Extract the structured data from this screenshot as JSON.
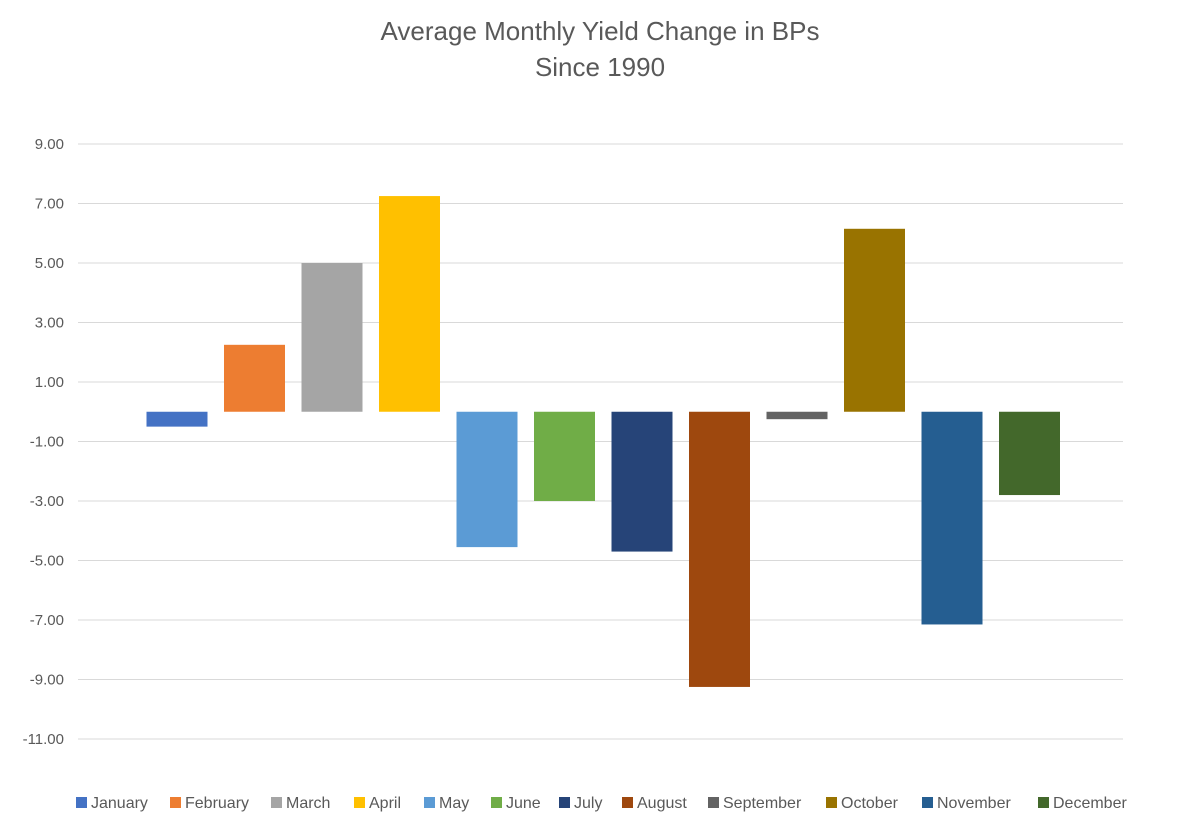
{
  "chart_data": {
    "type": "bar",
    "title": "Average Monthly Yield Change in BPs",
    "subtitle": "Since 1990",
    "xlabel": "",
    "ylabel": "",
    "ylim": [
      -11,
      9
    ],
    "yticks": [
      9,
      7,
      5,
      3,
      1,
      -1,
      -3,
      -5,
      -7,
      -9,
      -11
    ],
    "ytick_labels": [
      "9.00",
      "7.00",
      "5.00",
      "3.00",
      "1.00",
      "-1.00",
      "-3.00",
      "-5.00",
      "-7.00",
      "-9.00",
      "-11.00"
    ],
    "grid": true,
    "legend_position": "bottom",
    "series": [
      {
        "name": "January",
        "value": -0.5,
        "color": "#4472C4"
      },
      {
        "name": "February",
        "value": 2.25,
        "color": "#ED7D31"
      },
      {
        "name": "March",
        "value": 5.0,
        "color": "#A5A5A5"
      },
      {
        "name": "April",
        "value": 7.25,
        "color": "#FFC000"
      },
      {
        "name": "May",
        "value": -4.55,
        "color": "#5B9BD5"
      },
      {
        "name": "June",
        "value": -3.0,
        "color": "#70AD47"
      },
      {
        "name": "July",
        "value": -4.7,
        "color": "#264478"
      },
      {
        "name": "August",
        "value": -9.25,
        "color": "#9E480E"
      },
      {
        "name": "September",
        "value": -0.25,
        "color": "#636363"
      },
      {
        "name": "October",
        "value": 6.15,
        "color": "#997300"
      },
      {
        "name": "November",
        "value": -7.15,
        "color": "#255E91"
      },
      {
        "name": "December",
        "value": -2.8,
        "color": "#43682B"
      }
    ]
  }
}
